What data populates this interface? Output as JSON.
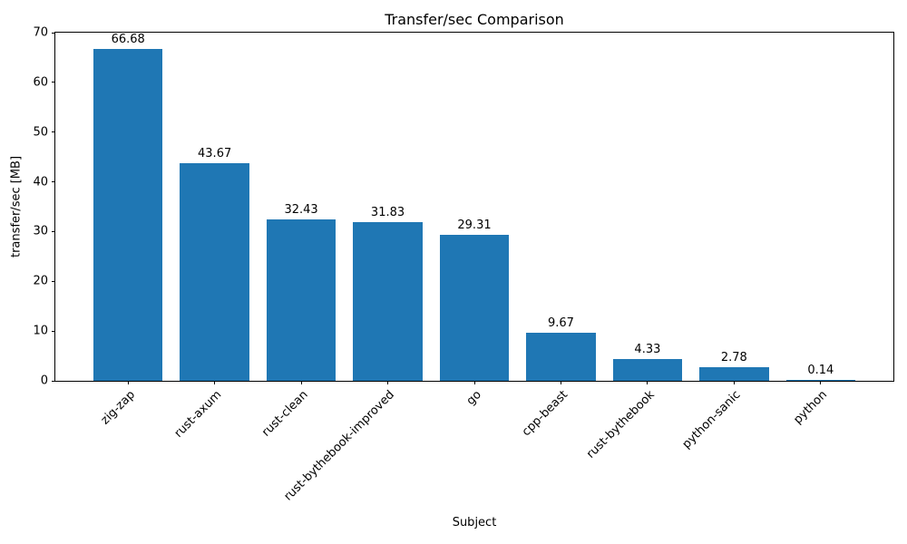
{
  "chart_data": {
    "type": "bar",
    "title": "Transfer/sec Comparison",
    "xlabel": "Subject",
    "ylabel": "transfer/sec [MB]",
    "categories": [
      "zig-zap",
      "rust-axum",
      "rust-clean",
      "rust-bythebook-improved",
      "go",
      "cpp-beast",
      "rust-bythebook",
      "python-sanic",
      "python"
    ],
    "values": [
      66.68,
      43.67,
      32.43,
      31.83,
      29.31,
      9.67,
      4.33,
      2.78,
      0.14
    ],
    "bar_labels": [
      "66.68",
      "43.67",
      "32.43",
      "31.83",
      "29.31",
      "9.67",
      "4.33",
      "2.78",
      "0.14"
    ],
    "ylim": [
      0,
      70
    ],
    "yticks": [
      0,
      10,
      20,
      30,
      40,
      50,
      60,
      70
    ],
    "bar_color": "#1f77b4",
    "bar_width": 0.8,
    "grid": false,
    "legend": null
  }
}
